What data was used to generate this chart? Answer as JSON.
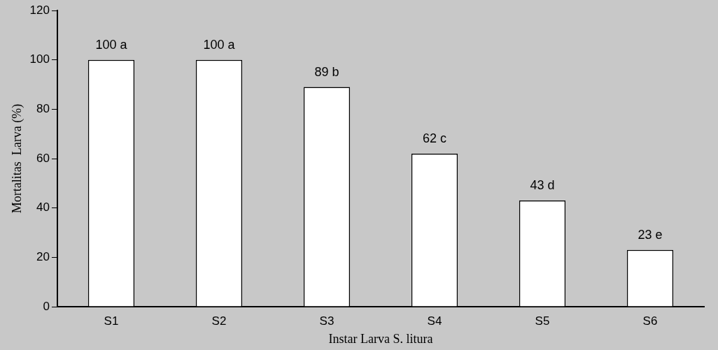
{
  "chart_data": {
    "type": "bar",
    "xlabel": "Instar Larva S. litura",
    "ylabel": "Mortalitas  Larva (%)",
    "categories": [
      "S1",
      "S2",
      "S3",
      "S4",
      "S5",
      "S6"
    ],
    "values": [
      100,
      100,
      89,
      62,
      43,
      23
    ],
    "value_labels": [
      "100 a",
      "100 a",
      "89 b",
      "62 c",
      "43 d",
      "23 e"
    ],
    "color": "#ffffff",
    "ylim": [
      0,
      120
    ],
    "yticks": [
      0,
      20,
      40,
      60,
      80,
      100,
      120
    ],
    "grid": false,
    "legend": false
  }
}
